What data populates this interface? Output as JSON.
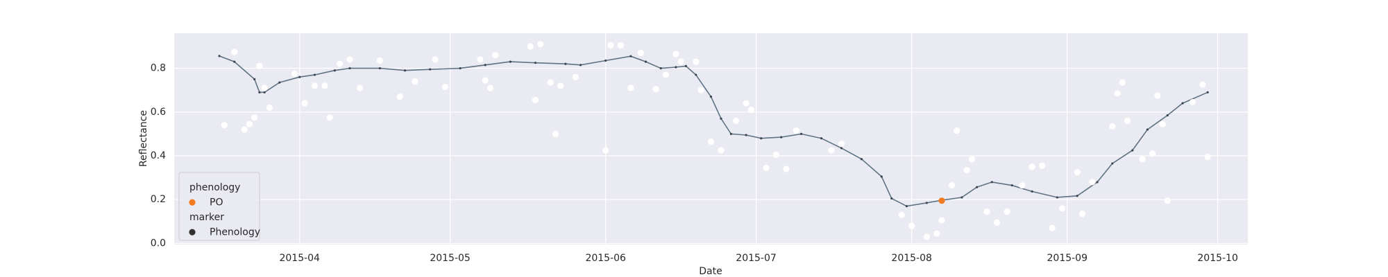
{
  "chart_data": {
    "type": "line",
    "xlabel": "Date",
    "ylabel": "Reflectance",
    "xlim": [
      "2015-03-07",
      "2015-10-07"
    ],
    "ylim": [
      -0.005,
      0.96
    ],
    "xticks": [
      {
        "value": "2015-04-01",
        "label": "2015-04"
      },
      {
        "value": "2015-05-01",
        "label": "2015-05"
      },
      {
        "value": "2015-06-01",
        "label": "2015-06"
      },
      {
        "value": "2015-07-01",
        "label": "2015-07"
      },
      {
        "value": "2015-08-01",
        "label": "2015-08"
      },
      {
        "value": "2015-09-01",
        "label": "2015-09"
      },
      {
        "value": "2015-10-01",
        "label": "2015-10"
      }
    ],
    "yticks": [
      {
        "value": 0,
        "label": "0.0"
      },
      0.2,
      0.4,
      0.6,
      0.8
    ],
    "grid": true,
    "background": "#eaeaf2",
    "series": [
      {
        "style": "line-markers",
        "color": "#5f7282",
        "x": [
          "2015-03-16",
          "2015-03-19",
          "2015-03-23",
          "2015-03-24",
          "2015-03-25",
          "2015-03-28",
          "2015-04-01",
          "2015-04-04",
          "2015-04-08",
          "2015-04-11",
          "2015-04-17",
          "2015-04-22",
          "2015-04-27",
          "2015-05-03",
          "2015-05-08",
          "2015-05-13",
          "2015-05-18",
          "2015-05-24",
          "2015-05-27",
          "2015-06-01",
          "2015-06-06",
          "2015-06-09",
          "2015-06-12",
          "2015-06-15",
          "2015-06-17",
          "2015-06-19",
          "2015-06-22",
          "2015-06-24",
          "2015-06-26",
          "2015-06-29",
          "2015-07-02",
          "2015-07-06",
          "2015-07-10",
          "2015-07-14",
          "2015-07-18",
          "2015-07-22",
          "2015-07-26",
          "2015-07-28",
          "2015-07-31",
          "2015-08-04",
          "2015-08-07",
          "2015-08-11",
          "2015-08-14",
          "2015-08-17",
          "2015-08-21",
          "2015-08-25",
          "2015-08-30",
          "2015-09-03",
          "2015-09-07",
          "2015-09-10",
          "2015-09-14",
          "2015-09-17",
          "2015-09-21",
          "2015-09-24",
          "2015-09-29"
        ],
        "values": [
          0.856,
          0.83,
          0.75,
          0.69,
          0.69,
          0.735,
          0.76,
          0.77,
          0.79,
          0.8,
          0.8,
          0.79,
          0.795,
          0.8,
          0.815,
          0.83,
          0.825,
          0.82,
          0.815,
          0.835,
          0.855,
          0.83,
          0.8,
          0.805,
          0.81,
          0.77,
          0.67,
          0.57,
          0.5,
          0.495,
          0.48,
          0.485,
          0.5,
          0.48,
          0.435,
          0.385,
          0.305,
          0.205,
          0.17,
          0.185,
          0.197,
          0.21,
          0.257,
          0.28,
          0.265,
          0.237,
          0.21,
          0.217,
          0.28,
          0.365,
          0.425,
          0.52,
          0.585,
          0.64,
          0.69
        ]
      },
      {
        "style": "scatter",
        "color": "#ffffff",
        "x": [
          "2015-03-17",
          "2015-03-19",
          "2015-03-21",
          "2015-03-22",
          "2015-03-23",
          "2015-03-24",
          "2015-03-25",
          "2015-03-26",
          "2015-03-31",
          "2015-04-02",
          "2015-04-04",
          "2015-04-06",
          "2015-04-07",
          "2015-04-09",
          "2015-04-11",
          "2015-04-13",
          "2015-04-17",
          "2015-04-21",
          "2015-04-24",
          "2015-04-28",
          "2015-04-30",
          "2015-05-07",
          "2015-05-08",
          "2015-05-09",
          "2015-05-10",
          "2015-05-17",
          "2015-05-18",
          "2015-05-19",
          "2015-05-21",
          "2015-05-22",
          "2015-05-23",
          "2015-05-26",
          "2015-06-01",
          "2015-06-02",
          "2015-06-04",
          "2015-06-06",
          "2015-06-08",
          "2015-06-11",
          "2015-06-13",
          "2015-06-15",
          "2015-06-16",
          "2015-06-19",
          "2015-06-20",
          "2015-06-22",
          "2015-06-24",
          "2015-06-27",
          "2015-06-29",
          "2015-06-30",
          "2015-07-03",
          "2015-07-05",
          "2015-07-07",
          "2015-07-09",
          "2015-07-16",
          "2015-07-18",
          "2015-07-30",
          "2015-08-01",
          "2015-08-04",
          "2015-08-06",
          "2015-08-07",
          "2015-08-09",
          "2015-08-10",
          "2015-08-12",
          "2015-08-13",
          "2015-08-16",
          "2015-08-18",
          "2015-08-20",
          "2015-08-23",
          "2015-08-25",
          "2015-08-27",
          "2015-08-29",
          "2015-08-31",
          "2015-09-03",
          "2015-09-04",
          "2015-09-06",
          "2015-09-10",
          "2015-09-11",
          "2015-09-12",
          "2015-09-13",
          "2015-09-16",
          "2015-09-18",
          "2015-09-19",
          "2015-09-20",
          "2015-09-21",
          "2015-09-26",
          "2015-09-28",
          "2015-09-29"
        ],
        "values": [
          0.54,
          0.875,
          0.52,
          0.545,
          0.575,
          0.81,
          0.71,
          0.62,
          0.775,
          0.64,
          0.72,
          0.72,
          0.575,
          0.82,
          0.84,
          0.71,
          0.835,
          0.67,
          0.74,
          0.84,
          0.715,
          0.84,
          0.745,
          0.71,
          0.86,
          0.9,
          0.655,
          0.91,
          0.735,
          0.5,
          0.72,
          0.76,
          0.425,
          0.905,
          0.905,
          0.71,
          0.87,
          0.705,
          0.77,
          0.865,
          0.83,
          0.83,
          0.7,
          0.465,
          0.425,
          0.56,
          0.64,
          0.61,
          0.345,
          0.405,
          0.34,
          0.515,
          0.425,
          0.455,
          0.13,
          0.08,
          0.03,
          0.045,
          0.105,
          0.265,
          0.515,
          0.335,
          0.385,
          0.145,
          0.095,
          0.145,
          0.265,
          0.35,
          0.355,
          0.07,
          0.16,
          0.325,
          0.135,
          0.28,
          0.535,
          0.685,
          0.735,
          0.56,
          0.385,
          0.41,
          0.675,
          0.545,
          0.195,
          0.645,
          0.725,
          0.395
        ]
      },
      {
        "style": "scatter",
        "color": "#f47a1f",
        "x": [
          "2015-08-07"
        ],
        "values": [
          0.195
        ]
      }
    ],
    "legend": {
      "location": "lower left",
      "sections": [
        {
          "title": "phenology",
          "entries": [
            {
              "label": "PO",
              "color": "#f47a1f"
            }
          ]
        },
        {
          "title": "marker",
          "entries": [
            {
              "label": "Phenology",
              "color": "#333333"
            }
          ]
        }
      ]
    }
  }
}
